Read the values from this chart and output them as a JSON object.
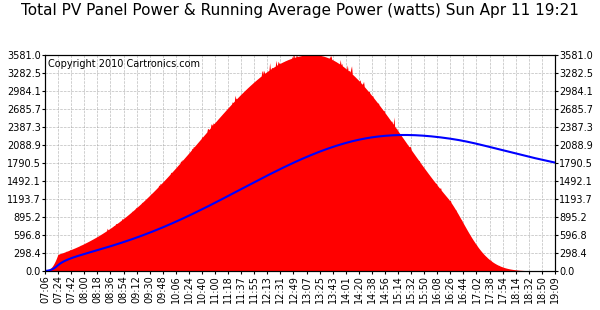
{
  "title": "Total PV Panel Power & Running Average Power (watts) Sun Apr 11 19:21",
  "copyright": "Copyright 2010 Cartronics.com",
  "bg_color": "#ffffff",
  "plot_bg_color": "#ffffff",
  "grid_color": "#a0a0a0",
  "bar_color": "#ff0000",
  "avg_line_color": "#0000ff",
  "ymin": 0.0,
  "ymax": 3581.0,
  "yticks": [
    0.0,
    298.4,
    596.8,
    895.2,
    1193.7,
    1492.1,
    1790.5,
    2088.9,
    2387.3,
    2685.7,
    2984.1,
    3282.5,
    3581.0
  ],
  "xtick_labels": [
    "07:06",
    "07:24",
    "07:42",
    "08:00",
    "08:18",
    "08:36",
    "08:54",
    "09:12",
    "09:30",
    "09:48",
    "10:06",
    "10:24",
    "10:40",
    "11:00",
    "11:18",
    "11:37",
    "11:55",
    "12:13",
    "12:31",
    "12:49",
    "13:07",
    "13:25",
    "13:43",
    "14:01",
    "14:20",
    "14:38",
    "14:56",
    "15:14",
    "15:32",
    "15:50",
    "16:08",
    "16:26",
    "16:44",
    "17:02",
    "17:38",
    "17:54",
    "18:14",
    "18:32",
    "18:50",
    "19:09"
  ],
  "title_fontsize": 11,
  "copyright_fontsize": 7,
  "tick_fontsize": 7
}
